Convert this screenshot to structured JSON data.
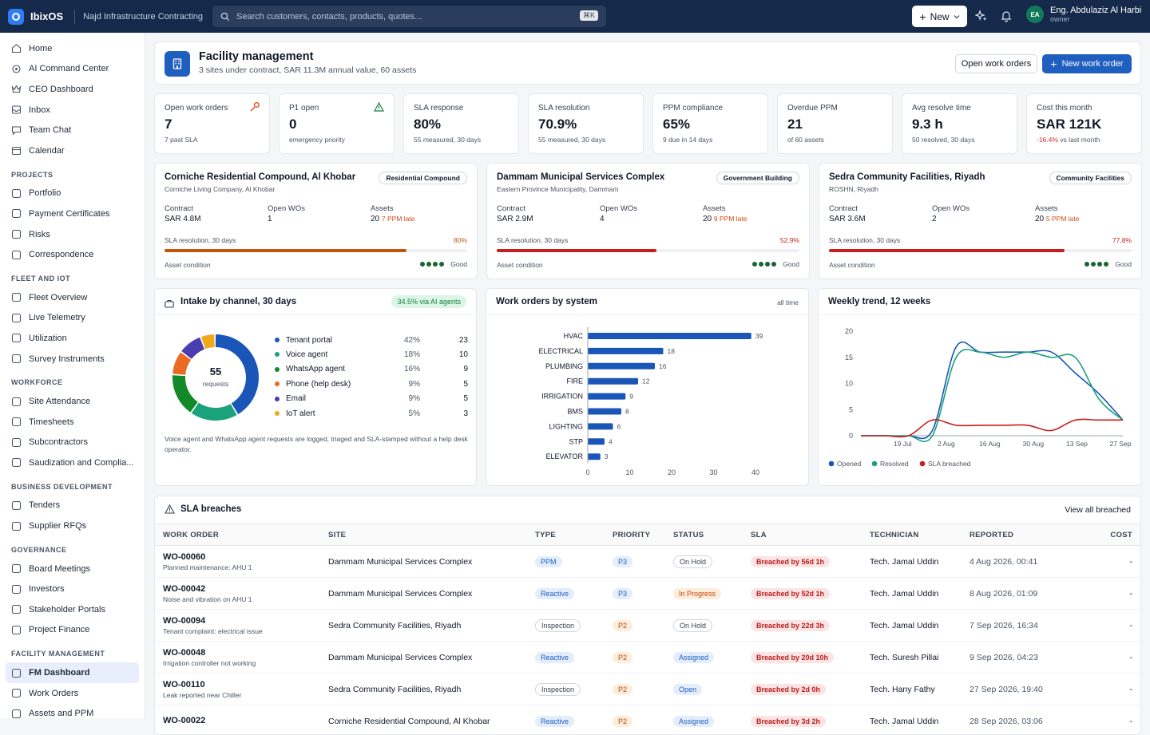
{
  "app": {
    "name": "IbixOS",
    "company": "Najd Infrastructure Contracting",
    "search_placeholder": "Search customers, contacts, products, quotes...",
    "search_shortcut": "⌘K",
    "new_label": "New",
    "user_initials": "EA",
    "user_name": "Eng. Abdulaziz Al Harbi",
    "user_role": "owner"
  },
  "sidebar": {
    "top": [
      {
        "label": "Home",
        "icon": "home-icon"
      },
      {
        "label": "AI Command Center",
        "icon": "ai-icon"
      },
      {
        "label": "CEO Dashboard",
        "icon": "crown-icon"
      },
      {
        "label": "Inbox",
        "icon": "inbox-icon"
      },
      {
        "label": "Team Chat",
        "icon": "chat-icon"
      },
      {
        "label": "Calendar",
        "icon": "calendar-icon"
      }
    ],
    "projects_title": "PROJECTS",
    "projects": [
      {
        "label": "Portfolio"
      },
      {
        "label": "Payment Certificates"
      },
      {
        "label": "Risks"
      },
      {
        "label": "Correspondence"
      }
    ],
    "fleet_title": "FLEET AND IOT",
    "fleet": [
      {
        "label": "Fleet Overview"
      },
      {
        "label": "Live Telemetry"
      },
      {
        "label": "Utilization"
      },
      {
        "label": "Survey Instruments"
      }
    ],
    "workforce_title": "WORKFORCE",
    "workforce": [
      {
        "label": "Site Attendance"
      },
      {
        "label": "Timesheets"
      },
      {
        "label": "Subcontractors"
      },
      {
        "label": "Saudization and Complia..."
      }
    ],
    "bizdev_title": "BUSINESS DEVELOPMENT",
    "bizdev": [
      {
        "label": "Tenders"
      },
      {
        "label": "Supplier RFQs"
      }
    ],
    "gov_title": "GOVERNANCE",
    "gov": [
      {
        "label": "Board Meetings"
      },
      {
        "label": "Investors"
      },
      {
        "label": "Stakeholder Portals"
      },
      {
        "label": "Project Finance"
      }
    ],
    "fm_title": "FACILITY MANAGEMENT",
    "fm": [
      {
        "label": "FM Dashboard"
      },
      {
        "label": "Work Orders"
      },
      {
        "label": "Assets and PPM"
      }
    ]
  },
  "header": {
    "title": "Facility management",
    "subtitle": "3 sites under contract, SAR 11.3M annual value, 60 assets",
    "open_wo_label": "Open work orders",
    "new_wo_label": "New work order"
  },
  "kpis": [
    {
      "label": "Open work orders",
      "value": "7",
      "sub": "7 past SLA"
    },
    {
      "label": "P1 open",
      "value": "0",
      "sub": "emergency priority"
    },
    {
      "label": "SLA response",
      "value": "80%",
      "sub": "55 measured, 30 days"
    },
    {
      "label": "SLA resolution",
      "value": "70.9%",
      "sub": "55 measured, 30 days"
    },
    {
      "label": "PPM compliance",
      "value": "65%",
      "sub": "9 due in 14 days"
    },
    {
      "label": "Overdue PPM",
      "value": "21",
      "sub": "of 60 assets"
    },
    {
      "label": "Avg resolve time",
      "value": "9.3 h",
      "sub": "50 resolved, 30 days"
    },
    {
      "label": "Cost this month",
      "value": "SAR 121K",
      "delta": "-16.4%",
      "sub": "vs last month"
    }
  ],
  "sites": [
    {
      "title": "Corniche Residential Compound, Al Khobar",
      "client": "Corniche Living Company, Al Khobar",
      "tag": "Residential Compound",
      "contract_label": "Contract",
      "contract": "SAR 4.8M",
      "open_label": "Open WOs",
      "open": "1",
      "assets_label": "Assets",
      "assets": "20",
      "late": "7 PPM late",
      "sla_label": "SLA resolution, 30 days",
      "sla": "80%",
      "sla_value": 80,
      "sla_color": "#c2570c",
      "cond_label": "Asset condition",
      "cond": "Good"
    },
    {
      "title": "Dammam Municipal Services Complex",
      "client": "Eastern Province Municipality, Dammam",
      "tag": "Government Building",
      "contract_label": "Contract",
      "contract": "SAR 2.9M",
      "open_label": "Open WOs",
      "open": "4",
      "assets_label": "Assets",
      "assets": "20",
      "late": "9 PPM late",
      "sla_label": "SLA resolution, 30 days",
      "sla": "52.9%",
      "sla_value": 52.9,
      "sla_color": "#c81e1e",
      "cond_label": "Asset condition",
      "cond": "Good"
    },
    {
      "title": "Sedra Community Facilities, Riyadh",
      "client": "ROSHN, Riyadh",
      "tag": "Community Facilities",
      "contract_label": "Contract",
      "contract": "SAR 3.6M",
      "open_label": "Open WOs",
      "open": "2",
      "assets_label": "Assets",
      "assets": "20",
      "late": "5 PPM late",
      "sla_label": "SLA resolution, 30 days",
      "sla": "77.8%",
      "sla_value": 77.8,
      "sla_color": "#c81e1e",
      "cond_label": "Asset condition",
      "cond": "Good"
    }
  ],
  "intake": {
    "title": "Intake by channel, 30 days",
    "badge": "34.5% via AI agents",
    "total": "55",
    "total_label": "requests",
    "note": "Voice agent and WhatsApp agent requests are logged, triaged and SLA-stamped without a help desk operator.",
    "channels": [
      {
        "name": "Tenant portal",
        "pct": "42%",
        "count": 23,
        "color": "#1a56b8"
      },
      {
        "name": "Voice agent",
        "pct": "18%",
        "count": 10,
        "color": "#1aa37a"
      },
      {
        "name": "WhatsApp agent",
        "pct": "16%",
        "count": 9,
        "color": "#128a2a"
      },
      {
        "name": "Phone (help desk)",
        "pct": "9%",
        "count": 5,
        "color": "#ea6a23"
      },
      {
        "name": "Email",
        "pct": "9%",
        "count": 5,
        "color": "#4b3cb0"
      },
      {
        "name": "IoT alert",
        "pct": "5%",
        "count": 3,
        "color": "#f0a91b"
      }
    ]
  },
  "wo_system": {
    "title": "Work orders by system",
    "range": "all time"
  },
  "trend": {
    "title": "Weekly trend, 12 weeks"
  },
  "chart_data": [
    {
      "type": "bar",
      "title": "Work orders by system",
      "categories": [
        "HVAC",
        "ELECTRICAL",
        "PLUMBING",
        "FIRE",
        "IRRIGATION",
        "BMS",
        "LIGHTING",
        "STP",
        "ELEVATOR"
      ],
      "values": [
        39,
        18,
        16,
        12,
        9,
        8,
        6,
        4,
        3
      ],
      "xlim": [
        0,
        40
      ],
      "xticks": [
        0,
        10,
        20,
        30,
        40
      ],
      "orientation": "horizontal"
    },
    {
      "type": "line",
      "title": "Weekly trend, 12 weeks",
      "x": [
        "12 Jul",
        "19 Jul",
        "26 Jul",
        "2 Aug",
        "9 Aug",
        "16 Aug",
        "23 Aug",
        "30 Aug",
        "6 Sep",
        "13 Sep",
        "20 Sep",
        "27 Sep"
      ],
      "xticks": [
        "19 Jul",
        "2 Aug",
        "16 Aug",
        "30 Aug",
        "13 Sep",
        "27 Sep"
      ],
      "ylim": [
        0,
        20
      ],
      "yticks": [
        0,
        5,
        10,
        15,
        20
      ],
      "series": [
        {
          "name": "Opened",
          "color": "#1a56b8",
          "values": [
            0,
            0,
            0,
            1,
            17,
            16,
            16,
            16,
            16,
            12,
            8,
            3
          ]
        },
        {
          "name": "Resolved",
          "color": "#1aa37a",
          "values": [
            0,
            0,
            0,
            0,
            15,
            16,
            15,
            16,
            15,
            15,
            7,
            3
          ]
        },
        {
          "name": "SLA breached",
          "color": "#c81e1e",
          "values": [
            0,
            0,
            0,
            3,
            2,
            2,
            2,
            2,
            1,
            3,
            3,
            3
          ]
        }
      ]
    }
  ],
  "breaches": {
    "title": "SLA breaches",
    "view_all": "View all breached",
    "columns": [
      "WORK ORDER",
      "SITE",
      "TYPE",
      "PRIORITY",
      "STATUS",
      "SLA",
      "TECHNICIAN",
      "REPORTED",
      "COST"
    ],
    "rows": [
      {
        "id": "WO-00060",
        "desc": "Planned maintenance: AHU 1",
        "site": "Dammam Municipal Services Complex",
        "type": "PPM",
        "priority": "P3",
        "status": "On Hold",
        "sla": "Breached by 56d 1h",
        "tech": "Tech. Jamal Uddin",
        "reported": "4 Aug 2026, 00:41",
        "cost": "-"
      },
      {
        "id": "WO-00042",
        "desc": "Noise and vibration on AHU 1",
        "site": "Dammam Municipal Services Complex",
        "type": "Reactive",
        "priority": "P3",
        "status": "In Progress",
        "sla": "Breached by 52d 1h",
        "tech": "Tech. Jamal Uddin",
        "reported": "8 Aug 2026, 01:09",
        "cost": "-"
      },
      {
        "id": "WO-00094",
        "desc": "Tenant complaint: electrical issue",
        "site": "Sedra Community Facilities, Riyadh",
        "type": "Inspection",
        "priority": "P2",
        "status": "On Hold",
        "sla": "Breached by 22d 3h",
        "tech": "Tech. Jamal Uddin",
        "reported": "7 Sep 2026, 16:34",
        "cost": "-"
      },
      {
        "id": "WO-00048",
        "desc": "Irrigation controller not working",
        "site": "Dammam Municipal Services Complex",
        "type": "Reactive",
        "priority": "P2",
        "status": "Assigned",
        "sla": "Breached by 20d 10h",
        "tech": "Tech. Suresh Pillai",
        "reported": "9 Sep 2026, 04:23",
        "cost": "-"
      },
      {
        "id": "WO-00110",
        "desc": "Leak reported near Chiller",
        "site": "Sedra Community Facilities, Riyadh",
        "type": "Inspection",
        "priority": "P2",
        "status": "Open",
        "sla": "Breached by 2d 0h",
        "tech": "Tech. Hany Fathy",
        "reported": "27 Sep 2026, 19:40",
        "cost": "-"
      },
      {
        "id": "WO-00022",
        "desc": "",
        "site": "Corniche Residential Compound, Al Khobar",
        "type": "Reactive",
        "priority": "P2",
        "status": "Assigned",
        "sla": "Breached by 3d 2h",
        "tech": "Tech. Jamal Uddin",
        "reported": "28 Sep 2026, 03:06",
        "cost": "-"
      }
    ]
  }
}
